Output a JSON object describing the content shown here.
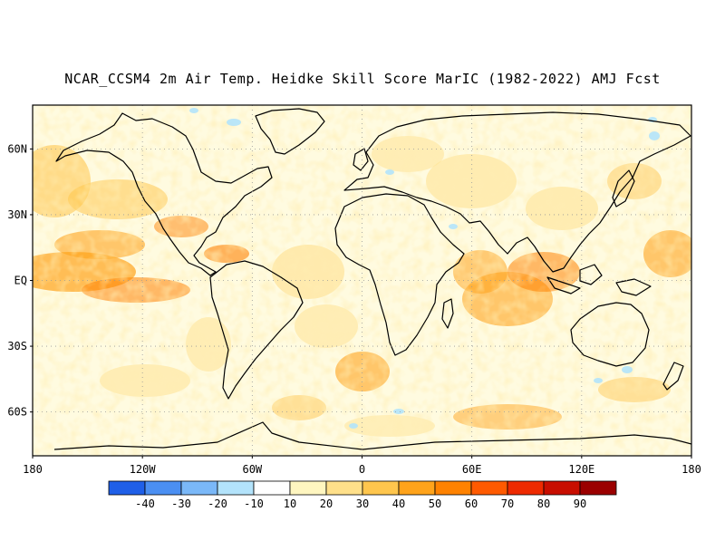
{
  "title": "NCAR_CCSM4 2m Air Temp. Heidke Skill Score MarIC (1982-2022) AMJ Fcst",
  "map": {
    "projection": "equirectangular",
    "lat_labels": [
      "60N",
      "30N",
      "EQ",
      "30S",
      "60S"
    ],
    "lat_values": [
      60,
      30,
      0,
      -30,
      -60
    ],
    "lon_labels": [
      "180",
      "120W",
      "60W",
      "0",
      "60E",
      "120E",
      "180"
    ],
    "lon_values": [
      -180,
      -120,
      -60,
      0,
      60,
      120,
      180
    ],
    "lat_range": [
      -80,
      80
    ],
    "lon_range": [
      -180,
      180
    ],
    "gridlines": true
  },
  "colorbar": {
    "colors": [
      "#1f5fe8",
      "#4b8ff2",
      "#7ab8f8",
      "#b3e3fb",
      "#ffffff",
      "#fff6c0",
      "#ffe08a",
      "#ffc64d",
      "#ffa31a",
      "#ff8200",
      "#ff5a00",
      "#ee2a00",
      "#c80e00",
      "#9b0000"
    ],
    "labels": [
      "-40",
      "-30",
      "-20",
      "-10",
      "10",
      "20",
      "30",
      "40",
      "50",
      "60",
      "70",
      "80",
      "90"
    ]
  },
  "colors": {
    "land_outline": "#000000",
    "background_low": "#fffbe0"
  }
}
